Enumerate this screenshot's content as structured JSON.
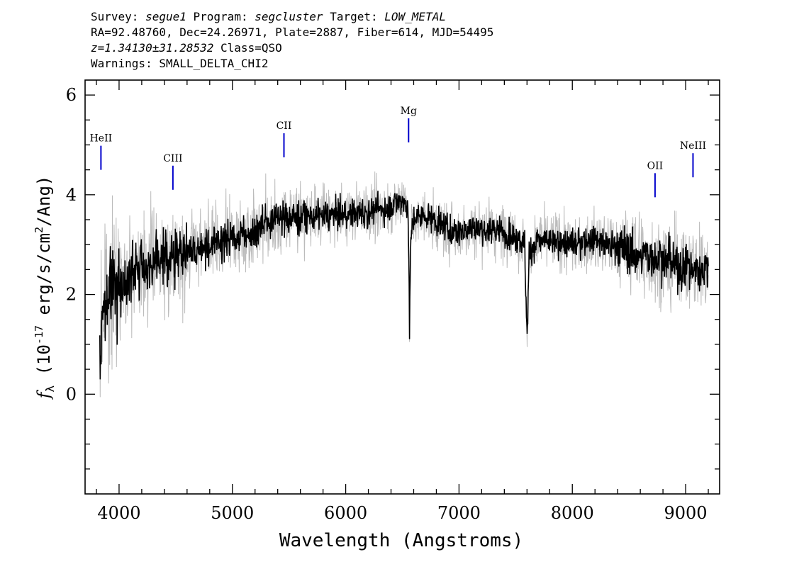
{
  "header": {
    "survey_label": "Survey:",
    "survey": "segue1",
    "program_label": "Program:",
    "program": "segcluster",
    "target_label": "Target:",
    "target": "LOW_METAL",
    "line2": "RA=92.48760, Dec=24.26971, Plate=2887, Fiber=614, MJD=54495",
    "redshift": "z=1.34130±31.28532",
    "class_text": "Class=QSO",
    "warnings": "Warnings: SMALL_DELTA_CHI2"
  },
  "chart_data": {
    "type": "line",
    "xlabel": "Wavelength (Angstroms)",
    "ylabel": "f_λ (10^-17 erg/s/cm^2/Ang)",
    "xlim": [
      3700,
      9300
    ],
    "ylim": [
      -2,
      6.3
    ],
    "xticks": [
      4000,
      5000,
      6000,
      7000,
      8000,
      9000
    ],
    "yticks": [
      0,
      2,
      4,
      6
    ],
    "grid": false,
    "series": [
      {
        "role": "flux (smoothed)",
        "color": "#000000",
        "x": [
          3830,
          3850,
          3880,
          3920,
          3960,
          4000,
          4050,
          4100,
          4150,
          4200,
          4300,
          4400,
          4500,
          4600,
          4700,
          4800,
          4900,
          5000,
          5100,
          5200,
          5300,
          5400,
          5500,
          5600,
          5700,
          5800,
          5900,
          6000,
          6100,
          6200,
          6300,
          6400,
          6500,
          6550,
          6563,
          6575,
          6600,
          6700,
          6800,
          6900,
          7000,
          7100,
          7200,
          7300,
          7400,
          7500,
          7580,
          7600,
          7620,
          7700,
          7800,
          7900,
          8000,
          8100,
          8200,
          8300,
          8400,
          8500,
          8600,
          8700,
          8800,
          8900,
          9000,
          9100,
          9150,
          9200
        ],
        "values": [
          0.5,
          1.6,
          1.9,
          2.1,
          2.2,
          2.2,
          2.3,
          2.4,
          2.5,
          2.55,
          2.6,
          2.7,
          2.75,
          2.85,
          2.95,
          3.0,
          3.05,
          3.15,
          3.2,
          3.3,
          3.45,
          3.5,
          3.55,
          3.55,
          3.55,
          3.6,
          3.6,
          3.6,
          3.65,
          3.65,
          3.7,
          3.75,
          3.9,
          3.8,
          1.3,
          3.2,
          3.5,
          3.6,
          3.45,
          3.3,
          3.25,
          3.35,
          3.3,
          3.3,
          3.25,
          3.15,
          3.0,
          1.1,
          2.8,
          3.1,
          3.05,
          3.05,
          3.0,
          3.05,
          3.1,
          3.0,
          2.95,
          2.9,
          2.75,
          2.75,
          2.7,
          2.6,
          2.55,
          2.5,
          2.55,
          2.5
        ]
      },
      {
        "role": "flux (raw, noisy)",
        "color": "#bbbbbb"
      }
    ],
    "line_markers": [
      {
        "label": "HeII",
        "wavelength": 3840,
        "flux": 4.5
      },
      {
        "label": "CIII",
        "wavelength": 4475,
        "flux": 4.1
      },
      {
        "label": "CII",
        "wavelength": 5455,
        "flux": 4.75
      },
      {
        "label": "Mg",
        "wavelength": 6555,
        "flux": 5.05
      },
      {
        "label": "OII",
        "wavelength": 8730,
        "flux": 3.95
      },
      {
        "label": "NeIII",
        "wavelength": 9065,
        "flux": 4.35
      }
    ],
    "marker_color": "#0000cc"
  }
}
